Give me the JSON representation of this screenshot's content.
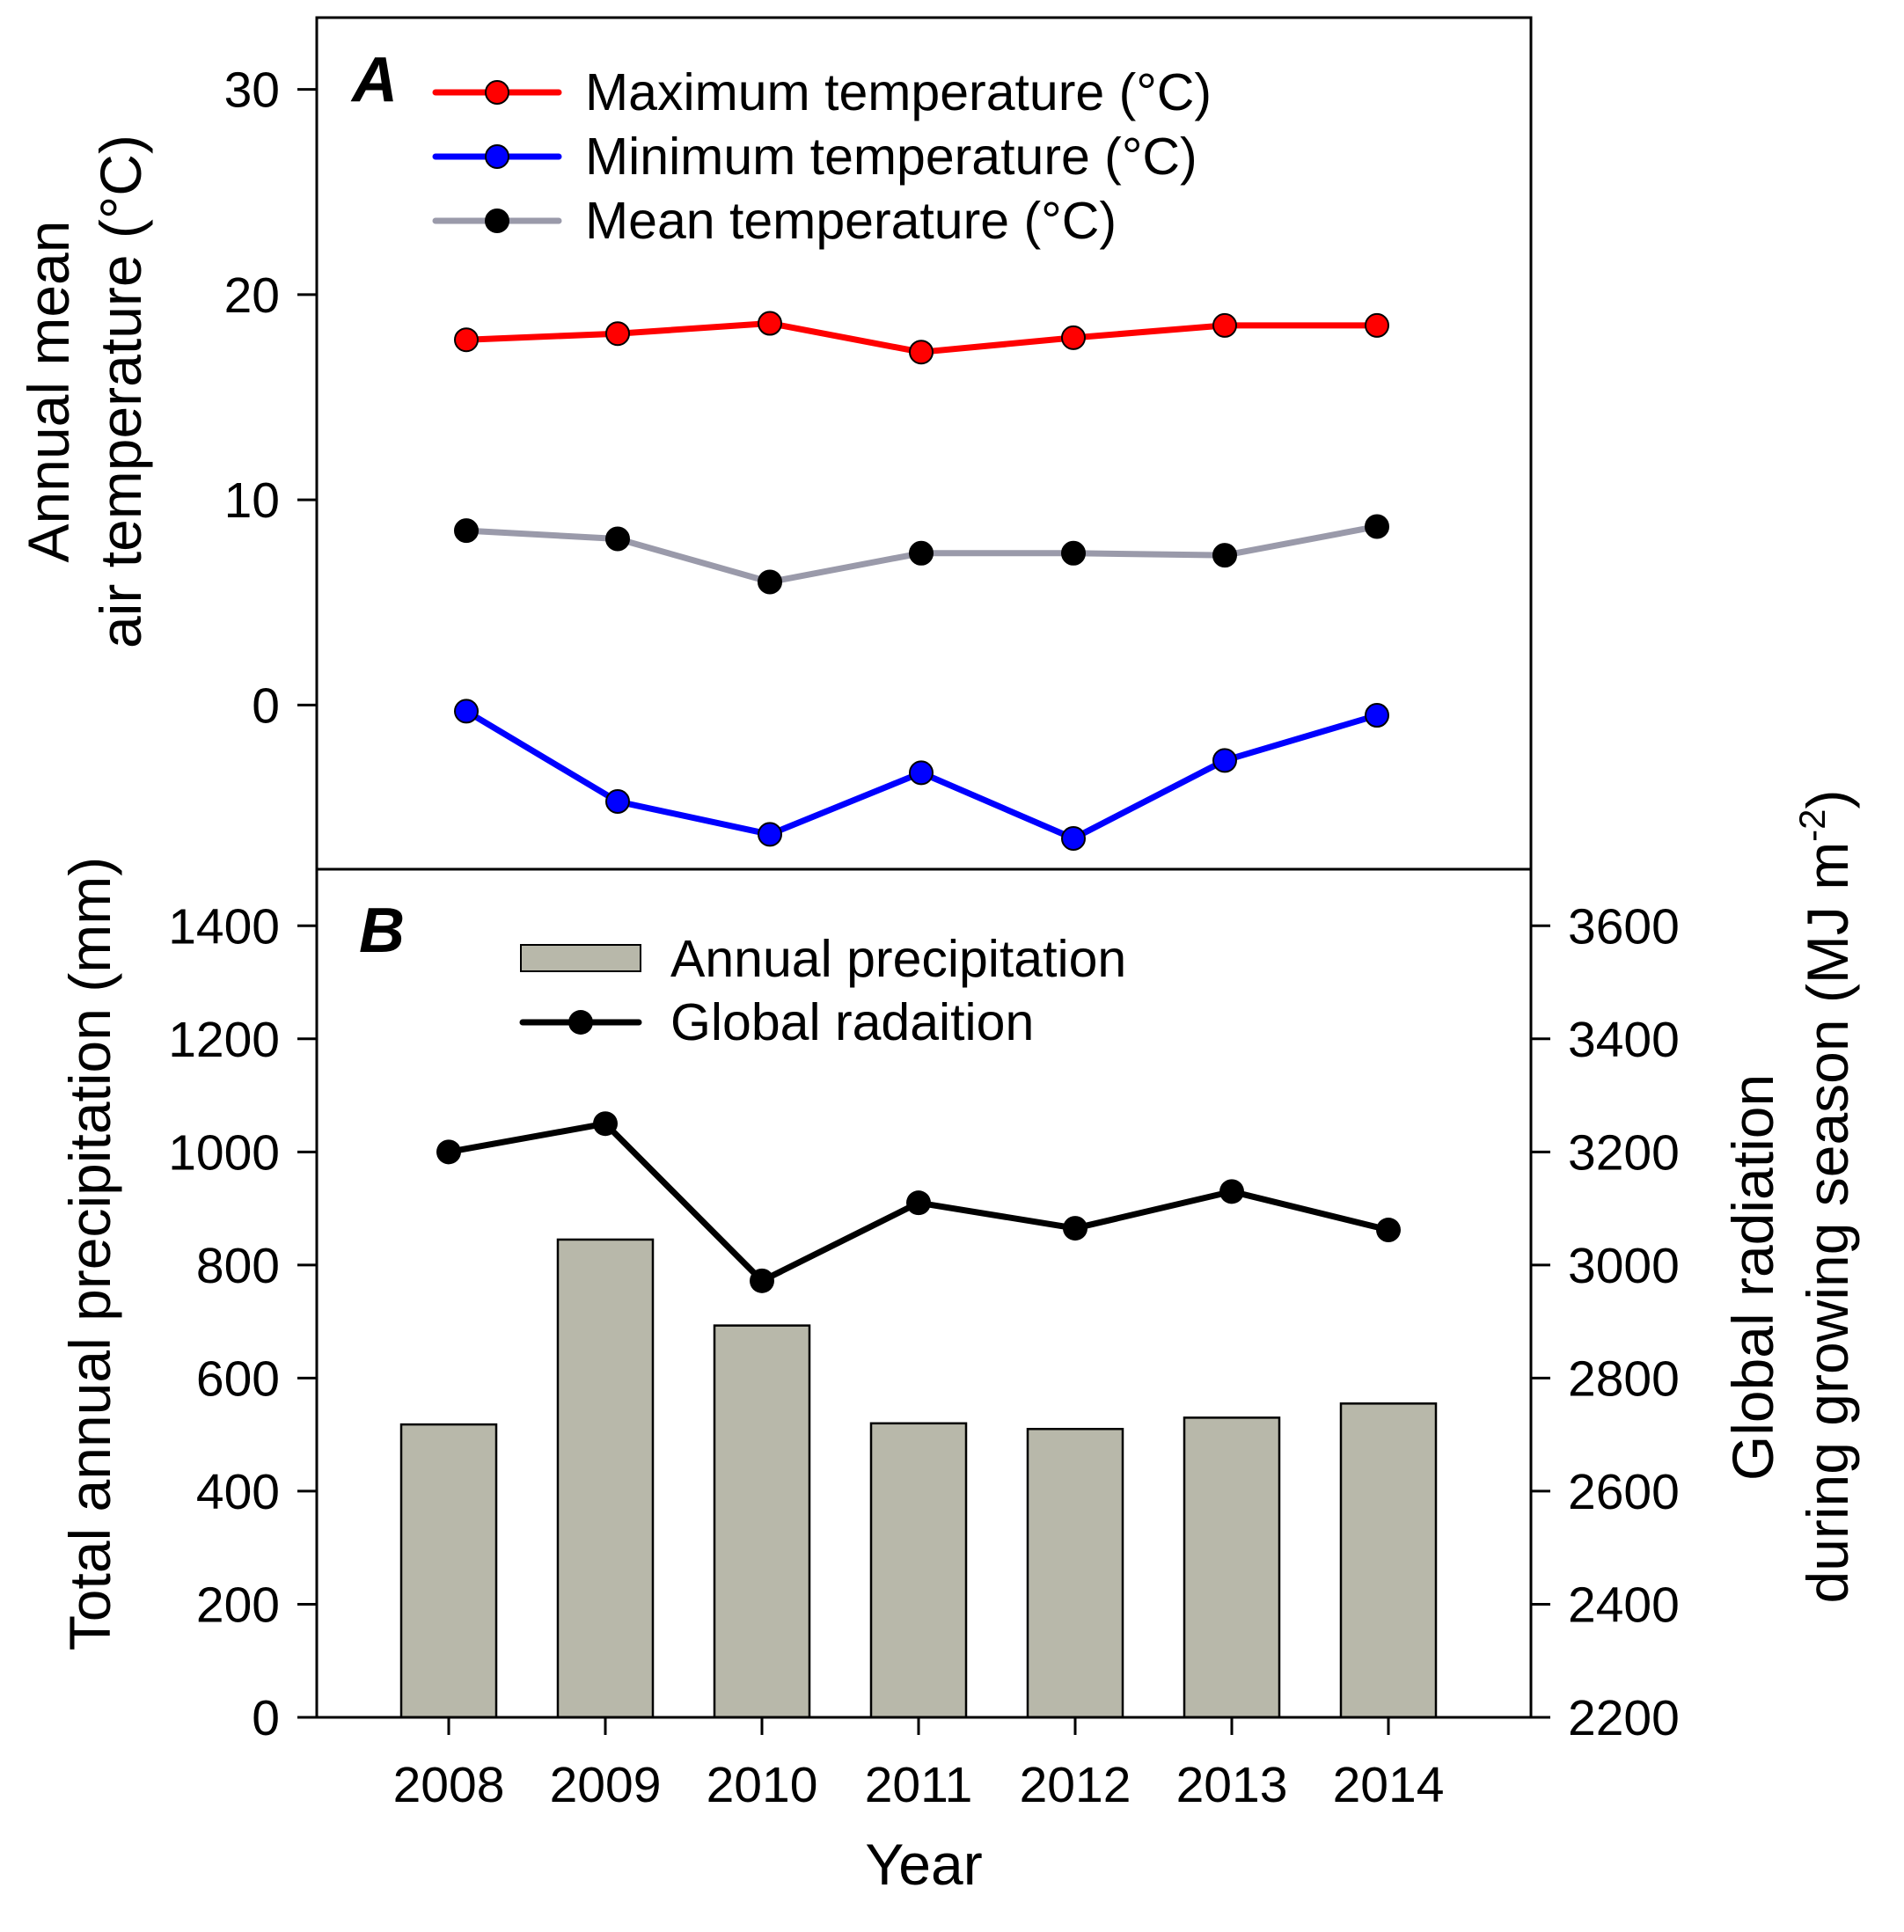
{
  "chart_data": [
    {
      "panel": "A",
      "type": "line",
      "panel_label": "A",
      "xlabel": "",
      "ylabel": [
        "Annual mean",
        "air temperature (°C)"
      ],
      "categories": [
        "2008",
        "2009",
        "2010",
        "2011",
        "2012",
        "2013",
        "2014"
      ],
      "ylim": [
        -8,
        33.5
      ],
      "yticks": [
        0,
        10,
        20,
        30
      ],
      "ytick_labels": [
        "0",
        "10",
        "20",
        "30"
      ],
      "legend_position": "top-left",
      "series": [
        {
          "name": "Maximum temperature (°C)",
          "color": "#ff0000",
          "marker_color": "#ff0000",
          "values": [
            17.8,
            18.1,
            18.6,
            17.2,
            17.9,
            18.5,
            18.5
          ]
        },
        {
          "name": "Minimum temperature (°C)",
          "color": "#0000ff",
          "marker_color": "#0000ff",
          "values": [
            -0.3,
            -4.7,
            -6.3,
            -3.3,
            -6.5,
            -2.7,
            -0.5
          ]
        },
        {
          "name": "Mean temperature (°C)",
          "color": "#9a9aaa",
          "marker_color": "#000000",
          "values": [
            8.5,
            8.1,
            6.0,
            7.4,
            7.4,
            7.3,
            8.7
          ]
        }
      ]
    },
    {
      "panel": "B",
      "type": "bar+line",
      "panel_label": "B",
      "xlabel": "Year",
      "categories": [
        "2008",
        "2009",
        "2010",
        "2011",
        "2012",
        "2013",
        "2014"
      ],
      "legend_position": "top-left",
      "bars": {
        "name": "Annual precipitation",
        "color": "#b8b8aa",
        "axis": "left",
        "values": [
          518,
          845,
          693,
          520,
          510,
          530,
          555
        ]
      },
      "line": {
        "name": "Global radaition",
        "color": "#000000",
        "axis": "right",
        "values": [
          3200,
          3250,
          2972,
          3110,
          3065,
          3130,
          3062
        ]
      },
      "left_axis": {
        "label": "Total annual precipitation (mm)",
        "ylim": [
          0,
          1500
        ],
        "ticks": [
          0,
          200,
          400,
          600,
          800,
          1000,
          1200,
          1400
        ],
        "tick_labels": [
          "0",
          "200",
          "400",
          "600",
          "800",
          "1000",
          "1200",
          "1400"
        ]
      },
      "right_axis": {
        "label_line1": "Global radiation",
        "label_line2_prefix": "during growing season (MJ m",
        "label_superscript": "-2",
        "label_suffix": ")",
        "ylim": [
          2200,
          3700
        ],
        "ticks": [
          2200,
          2400,
          2600,
          2800,
          3000,
          3200,
          3400,
          3600
        ],
        "tick_labels": [
          "2200",
          "2400",
          "2600",
          "2800",
          "3000",
          "3200",
          "3400",
          "3600"
        ]
      }
    }
  ]
}
